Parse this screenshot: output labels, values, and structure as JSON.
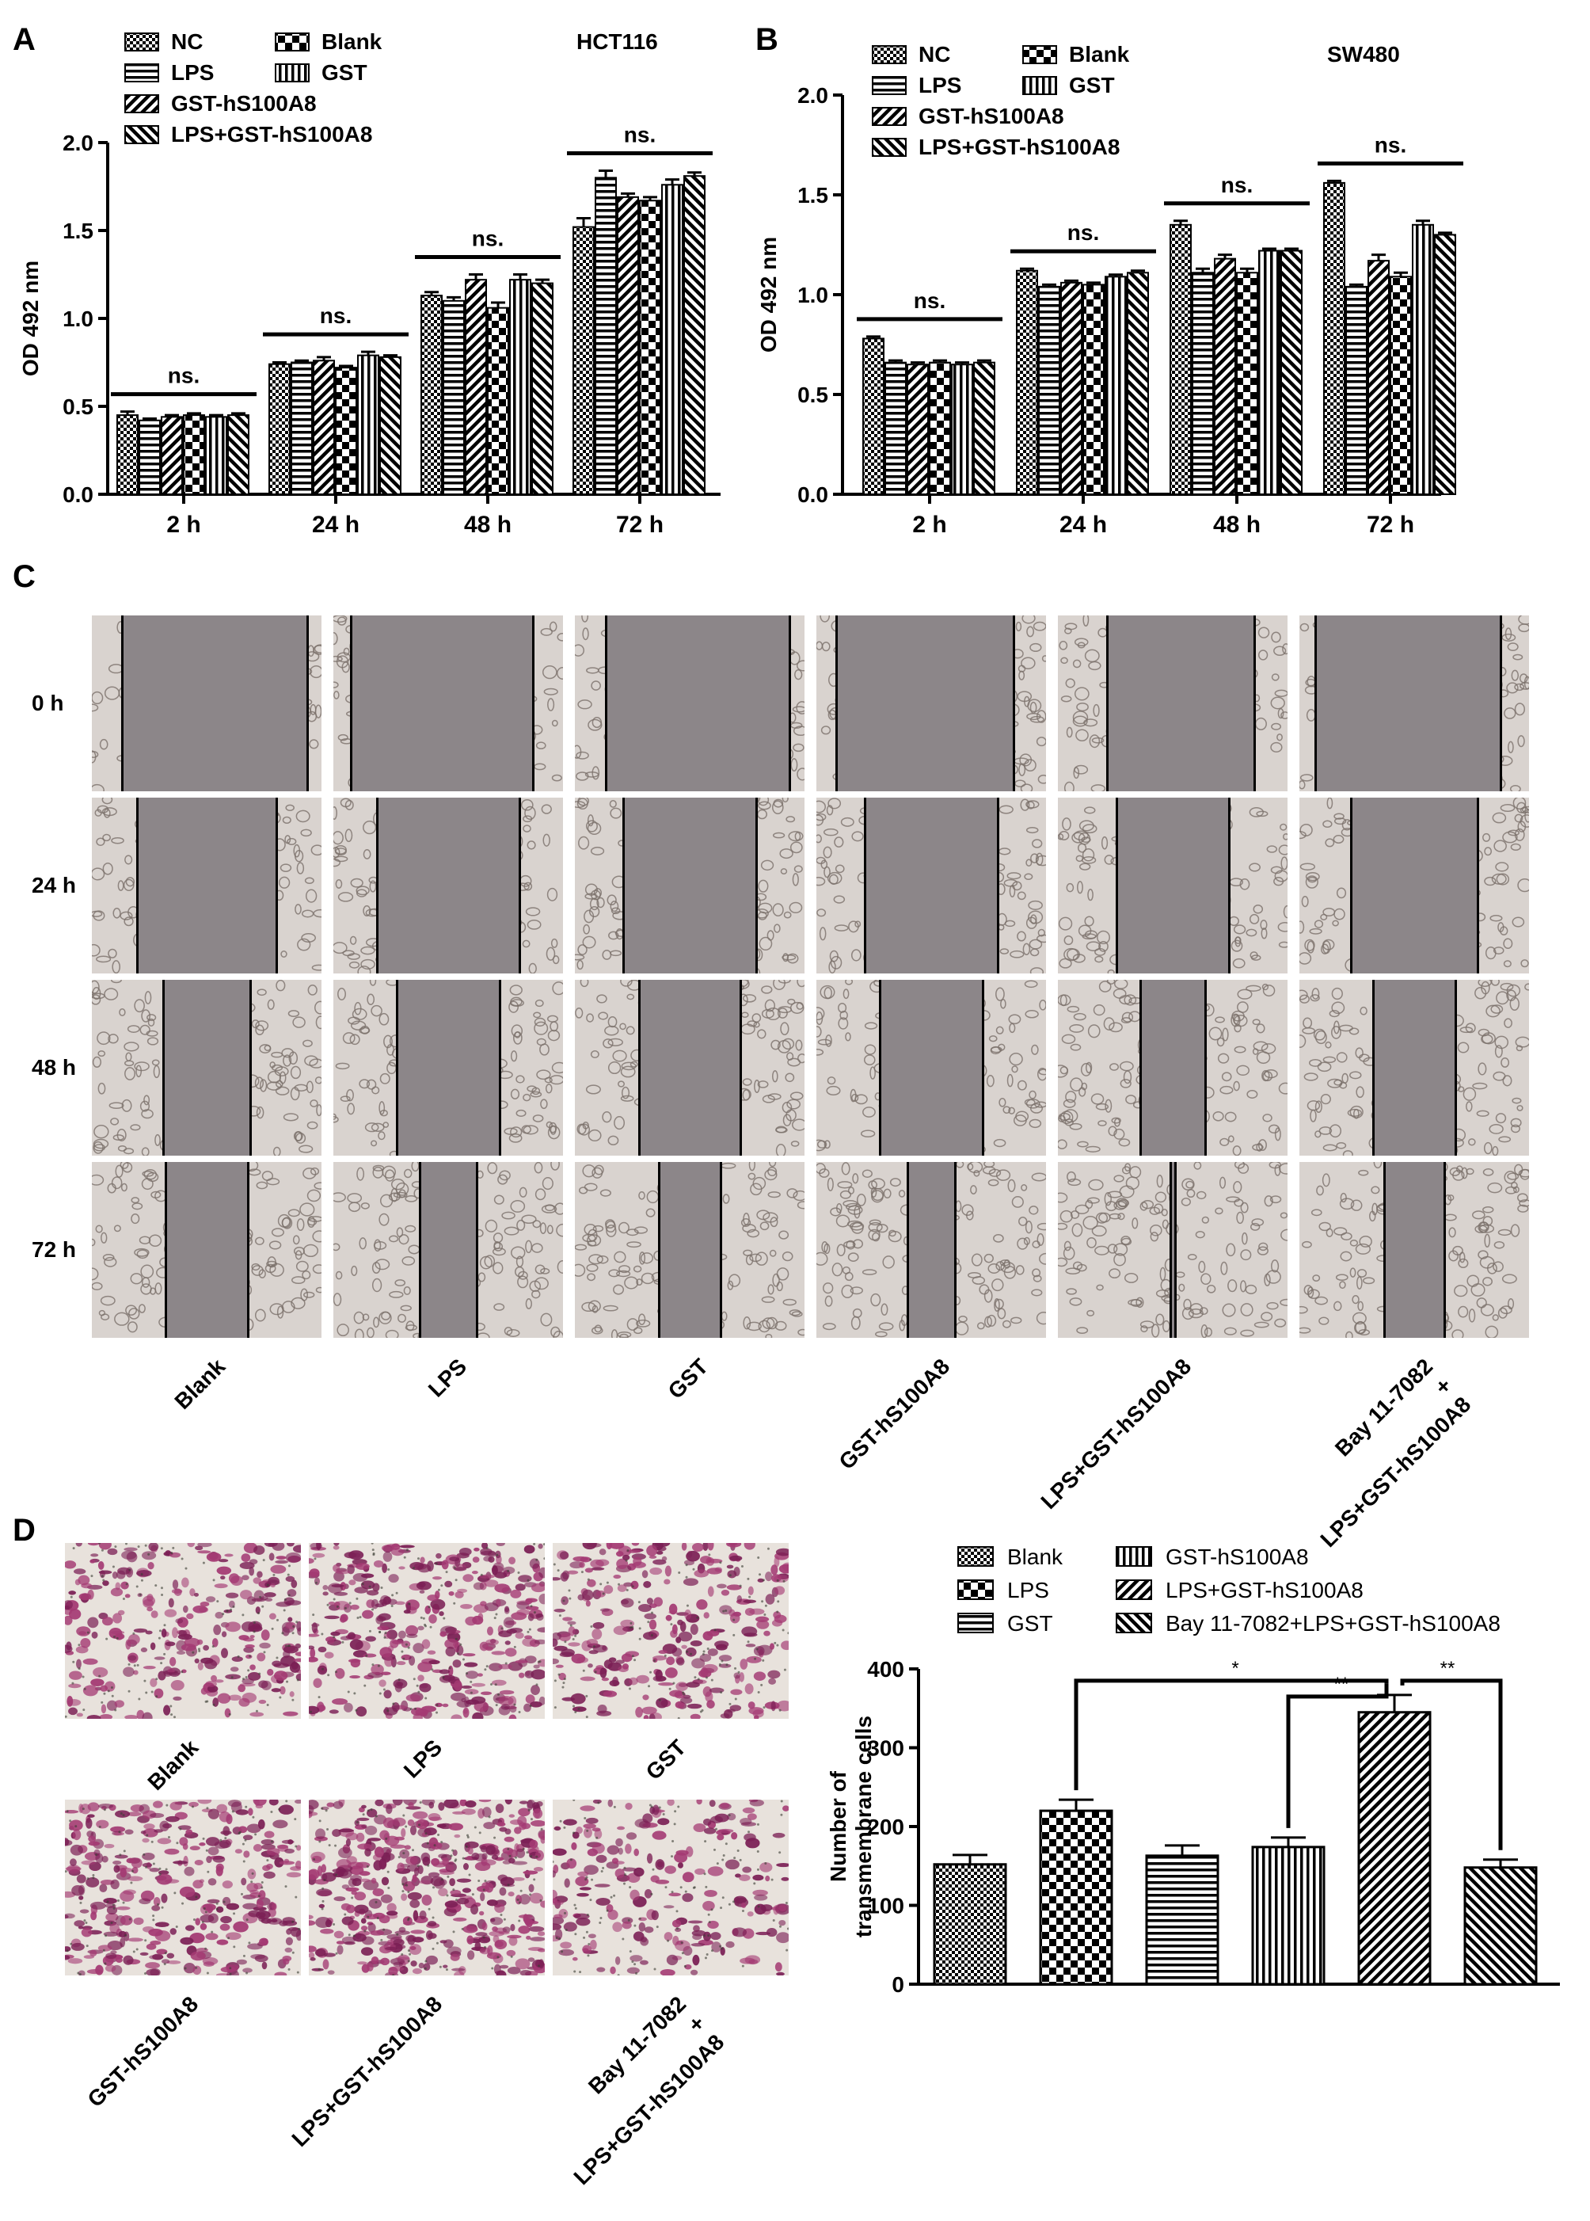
{
  "panels": {
    "A": "A",
    "B": "B",
    "C": "C",
    "D": "D"
  },
  "colors": {
    "axis": "#000000",
    "scratch_gap": "#8c8689",
    "scratch_cells": "#d9d3cf",
    "stain_purple": "#7b1f55",
    "stain_background": "#e8e2dc"
  },
  "chart_data": [
    {
      "panel": "A",
      "type": "bar",
      "title": "HCT116",
      "xlabel": "",
      "ylabel": "OD 492 nm",
      "ylim": [
        0,
        2.0
      ],
      "yticks": [
        "0.0",
        "0.5",
        "1.0",
        "1.5",
        "2.0"
      ],
      "categories": [
        "2 h",
        "24 h",
        "48 h",
        "72 h"
      ],
      "series": [
        {
          "name": "NC",
          "pattern": "checker-small",
          "values": [
            0.45,
            0.74,
            1.13,
            1.52
          ],
          "errors": [
            0.02,
            0.01,
            0.02,
            0.05
          ]
        },
        {
          "name": "LPS",
          "pattern": "hlines",
          "values": [
            0.42,
            0.75,
            1.1,
            1.8
          ],
          "errors": [
            0.01,
            0.01,
            0.02,
            0.04
          ]
        },
        {
          "name": "GST-hS100A8",
          "pattern": "diag",
          "values": [
            0.44,
            0.76,
            1.22,
            1.69
          ],
          "errors": [
            0.01,
            0.02,
            0.03,
            0.02
          ]
        },
        {
          "name": "Blank",
          "pattern": "checker-large",
          "values": [
            0.45,
            0.72,
            1.06,
            1.67
          ],
          "errors": [
            0.01,
            0.01,
            0.03,
            0.02
          ]
        },
        {
          "name": "GST",
          "pattern": "vlines",
          "values": [
            0.44,
            0.79,
            1.22,
            1.76
          ],
          "errors": [
            0.01,
            0.02,
            0.03,
            0.03
          ]
        },
        {
          "name": "LPS+GST-hS100A8",
          "pattern": "diag-rev",
          "values": [
            0.45,
            0.78,
            1.2,
            1.81
          ],
          "errors": [
            0.01,
            0.01,
            0.02,
            0.02
          ]
        }
      ],
      "legend": [
        "NC",
        "Blank",
        "LPS",
        "GST",
        "GST-hS100A8",
        "LPS+GST-hS100A8"
      ],
      "annotations": [
        "ns.",
        "ns.",
        "ns.",
        "ns."
      ]
    },
    {
      "panel": "B",
      "type": "bar",
      "title": "SW480",
      "xlabel": "",
      "ylabel": "OD 492 nm",
      "ylim": [
        0,
        2.0
      ],
      "yticks": [
        "0.0",
        "0.5",
        "1.0",
        "1.5",
        "2.0"
      ],
      "categories": [
        "2 h",
        "24 h",
        "48 h",
        "72 h"
      ],
      "series": [
        {
          "name": "NC",
          "pattern": "checker-small",
          "values": [
            0.78,
            1.12,
            1.35,
            1.56
          ],
          "errors": [
            0.01,
            0.01,
            0.02,
            0.01
          ]
        },
        {
          "name": "LPS",
          "pattern": "hlines",
          "values": [
            0.66,
            1.04,
            1.11,
            1.04
          ],
          "errors": [
            0.01,
            0.01,
            0.02,
            0.01
          ]
        },
        {
          "name": "GST-hS100A8",
          "pattern": "diag",
          "values": [
            0.65,
            1.06,
            1.18,
            1.17
          ],
          "errors": [
            0.01,
            0.01,
            0.02,
            0.03
          ]
        },
        {
          "name": "Blank",
          "pattern": "checker-large",
          "values": [
            0.66,
            1.05,
            1.11,
            1.09
          ],
          "errors": [
            0.01,
            0.01,
            0.02,
            0.02
          ]
        },
        {
          "name": "GST",
          "pattern": "vlines",
          "values": [
            0.65,
            1.09,
            1.22,
            1.35
          ],
          "errors": [
            0.01,
            0.01,
            0.01,
            0.02
          ]
        },
        {
          "name": "LPS+GST-hS100A8",
          "pattern": "diag-rev",
          "values": [
            0.66,
            1.11,
            1.22,
            1.3
          ],
          "errors": [
            0.01,
            0.01,
            0.01,
            0.01
          ]
        }
      ],
      "legend": [
        "NC",
        "Blank",
        "LPS",
        "GST",
        "GST-hS100A8",
        "LPS+GST-hS100A8"
      ],
      "annotations": [
        "ns.",
        "ns.",
        "ns.",
        "ns."
      ]
    },
    {
      "panel": "D",
      "type": "bar",
      "title": "",
      "xlabel": "",
      "ylabel": "Number of transmembrane cells",
      "ylabel_lines": [
        "Number of",
        "transmembrane cells"
      ],
      "ylim": [
        0,
        400
      ],
      "yticks": [
        "0",
        "100",
        "200",
        "300",
        "400"
      ],
      "categories": [
        "Blank",
        "LPS",
        "GST",
        "GST-hS100A8",
        "LPS+GST-hS100A8",
        "Bay 11-7082+LPS+GST-hS100A8"
      ],
      "values": [
        152,
        220,
        163,
        174,
        345,
        148
      ],
      "errors": [
        12,
        14,
        13,
        12,
        22,
        10
      ],
      "patterns": [
        "checker-small",
        "checker-large",
        "hlines",
        "vlines",
        "diag",
        "diag-rev"
      ],
      "legend": [
        "Blank",
        "GST-hS100A8",
        "LPS",
        "LPS+GST-hS100A8",
        "GST",
        "Bay 11-7082+LPS+GST-hS100A8"
      ],
      "significance": [
        {
          "from": "LPS",
          "to": "LPS+GST-hS100A8",
          "label": "*"
        },
        {
          "from": "GST-hS100A8",
          "to": "LPS+GST-hS100A8",
          "label": "**"
        },
        {
          "from": "LPS+GST-hS100A8",
          "to": "Bay 11-7082+LPS+GST-hS100A8",
          "label": "**"
        }
      ]
    }
  ],
  "panel_c": {
    "rows": [
      "0 h",
      "24 h",
      "48 h",
      "72 h"
    ],
    "columns": [
      "Blank",
      "LPS",
      "GST",
      "GST-hS100A8",
      "LPS+GST-hS100A8",
      "Bay 11-7082 + LPS+GST-hS100A8"
    ],
    "column_label_lines": [
      [
        "Blank"
      ],
      [
        "LPS"
      ],
      [
        "GST"
      ],
      [
        "GST-hS100A8"
      ],
      [
        "LPS+GST-hS100A8"
      ],
      [
        "Bay 11-7082",
        "+",
        "LPS+GST-hS100A8"
      ]
    ],
    "gap_fraction": [
      [
        0.81,
        0.79,
        0.8,
        0.77,
        0.64,
        0.81
      ],
      [
        0.61,
        0.62,
        0.58,
        0.58,
        0.49,
        0.55
      ],
      [
        0.38,
        0.45,
        0.44,
        0.45,
        0.28,
        0.36
      ],
      [
        0.36,
        0.25,
        0.27,
        0.21,
        0.02,
        0.26
      ]
    ]
  },
  "panel_d_images": {
    "labels": [
      "Blank",
      "LPS",
      "GST",
      "GST-hS100A8",
      "LPS+GST-hS100A8",
      "Bay 11-7082 + LPS+GST-hS100A8"
    ],
    "label_lines": [
      [
        "Blank"
      ],
      [
        "LPS"
      ],
      [
        "GST"
      ],
      [
        "GST-hS100A8"
      ],
      [
        "LPS+GST-hS100A8"
      ],
      [
        "Bay 11-7082",
        "+",
        "LPS+GST-hS100A8"
      ]
    ],
    "stain_density": [
      0.55,
      0.68,
      0.55,
      0.62,
      0.85,
      0.4
    ]
  }
}
